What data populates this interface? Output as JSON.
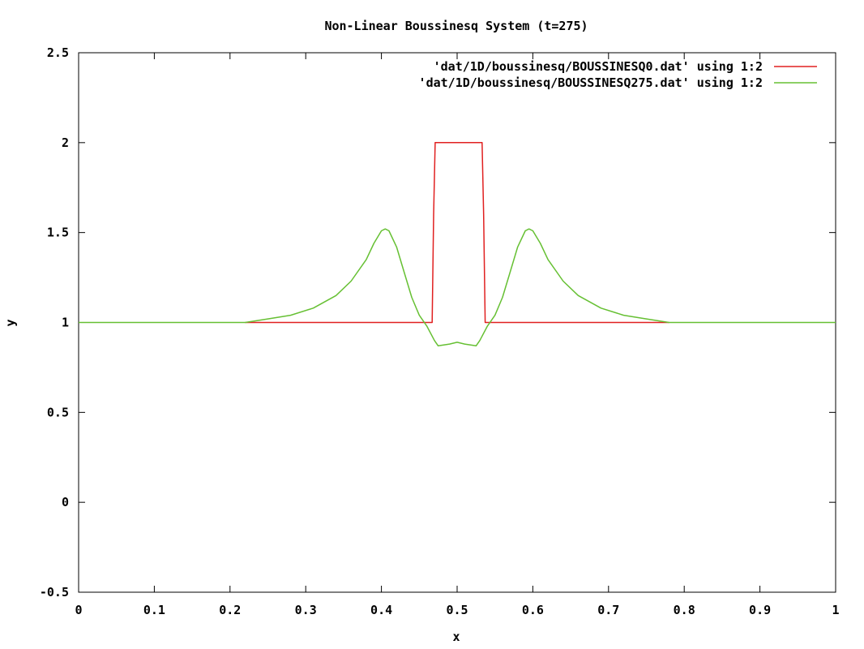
{
  "chart_data": {
    "type": "line",
    "title": "Non-Linear Boussinesq System (t=275)",
    "xlabel": "x",
    "ylabel": "y",
    "xlim": [
      0,
      1
    ],
    "ylim": [
      -0.5,
      2.5
    ],
    "x_ticks": [
      "0",
      "0.1",
      "0.2",
      "0.3",
      "0.4",
      "0.5",
      "0.6",
      "0.7",
      "0.8",
      "0.9",
      "1"
    ],
    "y_ticks": [
      "-0.5",
      "0",
      "0.5",
      "1",
      "1.5",
      "2",
      "2.5"
    ],
    "grid": false,
    "legend_position": "top-right",
    "series": [
      {
        "name": "'dat/1D/boussinesq/BOUSSINESQ0.dat' using 1:2",
        "color": "#e02020",
        "points": [
          [
            0.22,
            1.0
          ],
          [
            0.467,
            1.0
          ],
          [
            0.469,
            1.6
          ],
          [
            0.471,
            2.0
          ],
          [
            0.533,
            2.0
          ],
          [
            0.535,
            1.6
          ],
          [
            0.537,
            1.0
          ],
          [
            0.78,
            1.0
          ]
        ]
      },
      {
        "name": "'dat/1D/boussinesq/BOUSSINESQ275.dat' using 1:2",
        "color": "#66c033",
        "points": [
          [
            0.0,
            1.0
          ],
          [
            0.22,
            1.0
          ],
          [
            0.25,
            1.02
          ],
          [
            0.28,
            1.04
          ],
          [
            0.31,
            1.08
          ],
          [
            0.34,
            1.15
          ],
          [
            0.36,
            1.23
          ],
          [
            0.38,
            1.35
          ],
          [
            0.39,
            1.44
          ],
          [
            0.4,
            1.51
          ],
          [
            0.405,
            1.52
          ],
          [
            0.41,
            1.51
          ],
          [
            0.42,
            1.42
          ],
          [
            0.43,
            1.28
          ],
          [
            0.44,
            1.14
          ],
          [
            0.45,
            1.04
          ],
          [
            0.46,
            0.98
          ],
          [
            0.47,
            0.9
          ],
          [
            0.475,
            0.87
          ],
          [
            0.49,
            0.88
          ],
          [
            0.5,
            0.89
          ],
          [
            0.51,
            0.88
          ],
          [
            0.525,
            0.87
          ],
          [
            0.53,
            0.9
          ],
          [
            0.54,
            0.98
          ],
          [
            0.55,
            1.04
          ],
          [
            0.56,
            1.14
          ],
          [
            0.57,
            1.28
          ],
          [
            0.58,
            1.42
          ],
          [
            0.59,
            1.51
          ],
          [
            0.595,
            1.52
          ],
          [
            0.6,
            1.51
          ],
          [
            0.61,
            1.44
          ],
          [
            0.62,
            1.35
          ],
          [
            0.64,
            1.23
          ],
          [
            0.66,
            1.15
          ],
          [
            0.69,
            1.08
          ],
          [
            0.72,
            1.04
          ],
          [
            0.75,
            1.02
          ],
          [
            0.78,
            1.0
          ],
          [
            1.0,
            1.0
          ]
        ]
      }
    ]
  }
}
